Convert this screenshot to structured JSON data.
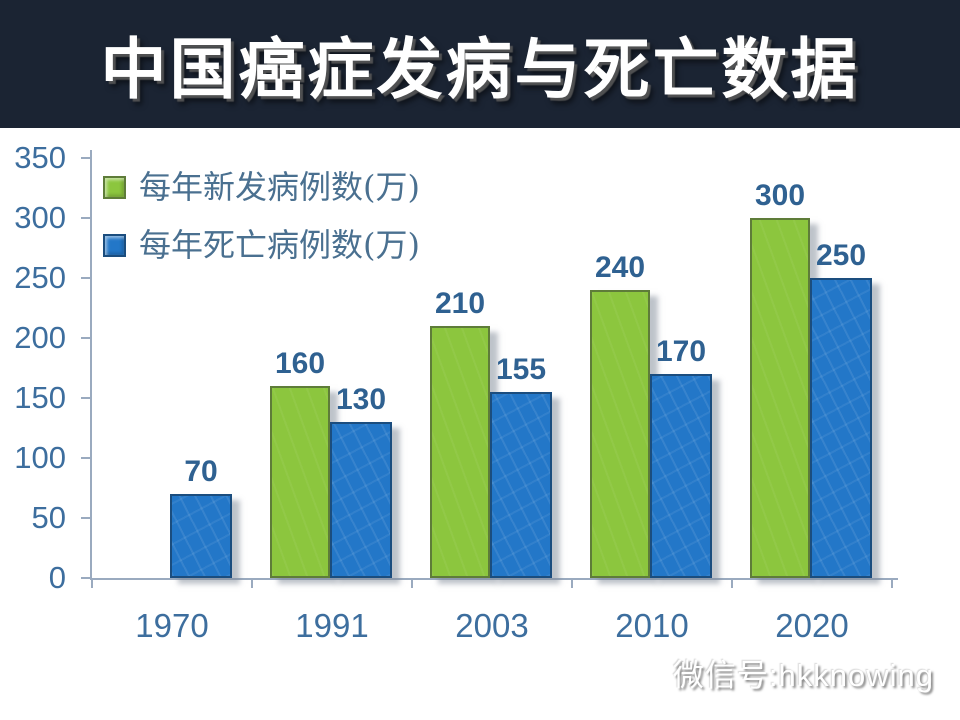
{
  "header": {
    "title": "中国癌症发病与死亡数据"
  },
  "watermark": {
    "text": "微信号:hkknowing"
  },
  "colors": {
    "header_bg": "#1b2433",
    "title_text": "#ffffff",
    "axis": "#9aaabf",
    "tick_label": "#3d6e9e",
    "value_label": "#2f6191",
    "legend_text": "#4a7090",
    "series_new_cases": "#8cc63e",
    "series_deaths": "#2377c8"
  },
  "chart_data": {
    "type": "bar",
    "title": "中国癌症发病与死亡数据",
    "categories": [
      "1970",
      "1991",
      "2003",
      "2010",
      "2020"
    ],
    "series": [
      {
        "name": "每年新发病例数(万)",
        "color": "#8cc63e",
        "border": "#5e7c39",
        "values": [
          null,
          160,
          210,
          240,
          300
        ]
      },
      {
        "name": "每年死亡病例数(万)",
        "color": "#2377c8",
        "border": "#1b4d7e",
        "values": [
          70,
          130,
          155,
          170,
          250
        ]
      }
    ],
    "xlabel": "",
    "ylabel": "",
    "ylim": [
      0,
      350
    ],
    "yticks": [
      0,
      50,
      100,
      150,
      200,
      250,
      300,
      350
    ],
    "grid": false,
    "legend_position": "top-left",
    "value_labels": true
  }
}
